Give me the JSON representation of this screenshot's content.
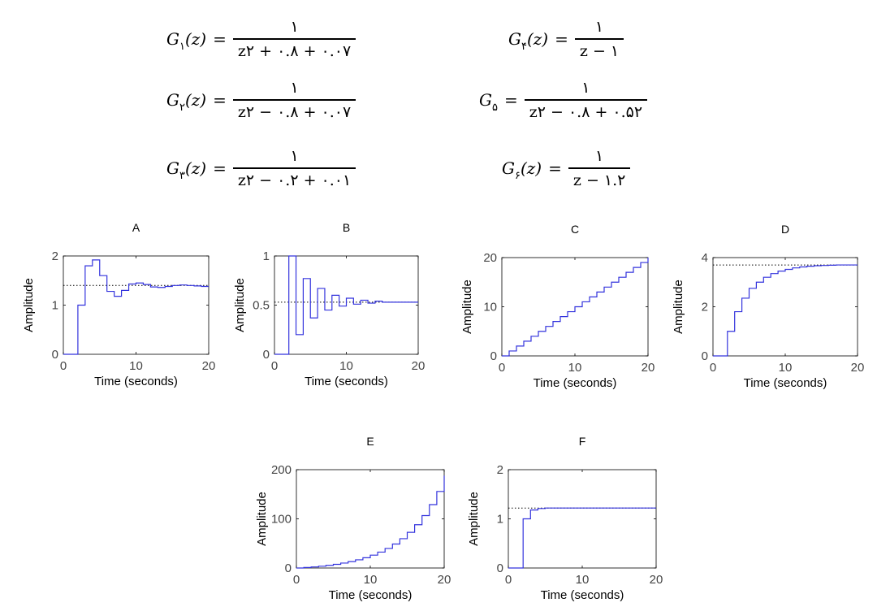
{
  "equations": [
    {
      "id": "g1",
      "lhs_main": "G",
      "lhs_sub": "۱",
      "lhs_arg": "(z)",
      "eq": "=",
      "num": "۱",
      "den": "z۲ + ۰.۸ + ۰.۰۷"
    },
    {
      "id": "g2",
      "lhs_main": "G",
      "lhs_sub": "۲",
      "lhs_arg": "(z)",
      "eq": "=",
      "num": "۱",
      "den": "z۲ − ۰.۸ + ۰.۰۷"
    },
    {
      "id": "g3",
      "lhs_main": "G",
      "lhs_sub": "۳",
      "lhs_arg": "(z)",
      "eq": "=",
      "num": "۱",
      "den": "z۲ − ۰.۲ + ۰.۰۱"
    },
    {
      "id": "g4",
      "lhs_main": "G",
      "lhs_sub": "۴",
      "lhs_arg": "(z)",
      "eq": "=",
      "num": "۱",
      "den": "z − ۱"
    },
    {
      "id": "g5",
      "lhs_main": "G",
      "lhs_sub": "۵",
      "lhs_arg": "",
      "eq": "=",
      "num": "۱",
      "den": "z۲ − ۰.۸ + ۰.۵۲"
    },
    {
      "id": "g6",
      "lhs_main": "G",
      "lhs_sub": "۶",
      "lhs_arg": "(z)",
      "eq": "=",
      "num": "۱",
      "den": "z − ۱.۲"
    }
  ],
  "colors": {
    "line": "#3333dd",
    "axis": "#000000",
    "tick_text": "#444444",
    "dotted": "#000000"
  },
  "chart_data": [
    {
      "type": "line",
      "title": "A",
      "xlabel": "Time (seconds)",
      "ylabel": "Amplitude",
      "xlim": [
        0,
        20
      ],
      "ylim": [
        0,
        2
      ],
      "xticks": [
        0,
        10,
        20
      ],
      "yticks": [
        0,
        1,
        2
      ],
      "steady_state": 1.4,
      "series": [
        {
          "x": [
            0,
            1,
            2,
            3,
            4,
            5,
            6,
            7,
            8,
            9,
            10,
            11,
            12,
            13,
            14,
            15,
            16,
            17,
            18,
            19,
            20
          ],
          "y": [
            0,
            0,
            1.0,
            1.8,
            1.92,
            1.6,
            1.28,
            1.18,
            1.3,
            1.43,
            1.45,
            1.42,
            1.37,
            1.36,
            1.38,
            1.4,
            1.41,
            1.4,
            1.39,
            1.38,
            1.38
          ]
        }
      ]
    },
    {
      "type": "line",
      "title": "B",
      "xlabel": "Time (seconds)",
      "ylabel": "Amplitude",
      "xlim": [
        0,
        20
      ],
      "ylim": [
        0,
        1
      ],
      "xticks": [
        0,
        10,
        20
      ],
      "yticks": [
        0,
        0.5,
        1
      ],
      "steady_state": 0.53,
      "series": [
        {
          "x": [
            0,
            1,
            2,
            3,
            4,
            5,
            6,
            7,
            8,
            9,
            10,
            11,
            12,
            13,
            14,
            15,
            16,
            17,
            18,
            19,
            20
          ],
          "y": [
            0,
            0,
            1.0,
            0.2,
            0.77,
            0.37,
            0.67,
            0.45,
            0.6,
            0.49,
            0.57,
            0.51,
            0.55,
            0.52,
            0.54,
            0.53,
            0.53,
            0.53,
            0.53,
            0.53,
            0.53
          ]
        }
      ]
    },
    {
      "type": "line",
      "title": "C",
      "xlabel": "Time (seconds)",
      "ylabel": "Amplitude",
      "xlim": [
        0,
        20
      ],
      "ylim": [
        0,
        20
      ],
      "xticks": [
        0,
        10,
        20
      ],
      "yticks": [
        0,
        10,
        20
      ],
      "series": [
        {
          "x": [
            0,
            1,
            2,
            3,
            4,
            5,
            6,
            7,
            8,
            9,
            10,
            11,
            12,
            13,
            14,
            15,
            16,
            17,
            18,
            19,
            20
          ],
          "y": [
            0,
            1,
            2,
            3,
            4,
            5,
            6,
            7,
            8,
            9,
            10,
            11,
            12,
            13,
            14,
            15,
            16,
            17,
            18,
            19,
            20
          ]
        }
      ]
    },
    {
      "type": "line",
      "title": "D",
      "xlabel": "Time (seconds)",
      "ylabel": "Amplitude",
      "xlim": [
        0,
        20
      ],
      "ylim": [
        0,
        4
      ],
      "xticks": [
        0,
        10,
        20
      ],
      "yticks": [
        0,
        2,
        4
      ],
      "steady_state": 3.7,
      "series": [
        {
          "x": [
            0,
            1,
            2,
            3,
            4,
            5,
            6,
            7,
            8,
            9,
            10,
            11,
            12,
            13,
            14,
            15,
            16,
            17,
            18,
            19,
            20
          ],
          "y": [
            0,
            0,
            1.0,
            1.8,
            2.35,
            2.75,
            3.0,
            3.2,
            3.35,
            3.45,
            3.52,
            3.58,
            3.62,
            3.65,
            3.67,
            3.68,
            3.69,
            3.7,
            3.7,
            3.7,
            3.7
          ]
        }
      ]
    },
    {
      "type": "line",
      "title": "E",
      "xlabel": "Time (seconds)",
      "ylabel": "Amplitude",
      "xlim": [
        0,
        20
      ],
      "ylim": [
        0,
        200
      ],
      "xticks": [
        0,
        10,
        20
      ],
      "yticks": [
        0,
        100,
        200
      ],
      "series": [
        {
          "x": [
            0,
            1,
            2,
            3,
            4,
            5,
            6,
            7,
            8,
            9,
            10,
            11,
            12,
            13,
            14,
            15,
            16,
            17,
            18,
            19,
            20
          ],
          "y": [
            0,
            1,
            2.2,
            3.6,
            5.4,
            7.5,
            10,
            13,
            16.6,
            20.9,
            26.1,
            32.3,
            39.8,
            48.8,
            59.6,
            72.5,
            88,
            106.6,
            128.9,
            155.7,
            187.8
          ]
        }
      ]
    },
    {
      "type": "line",
      "title": "F",
      "xlabel": "Time (seconds)",
      "ylabel": "Amplitude",
      "xlim": [
        0,
        20
      ],
      "ylim": [
        0,
        2
      ],
      "xticks": [
        0,
        10,
        20
      ],
      "yticks": [
        0,
        1,
        2
      ],
      "steady_state": 1.22,
      "series": [
        {
          "x": [
            0,
            1,
            2,
            3,
            4,
            5,
            6,
            7,
            8,
            9,
            10,
            11,
            12,
            13,
            14,
            15,
            16,
            17,
            18,
            19,
            20
          ],
          "y": [
            0,
            0,
            1.0,
            1.18,
            1.21,
            1.22,
            1.22,
            1.22,
            1.22,
            1.22,
            1.22,
            1.22,
            1.22,
            1.22,
            1.22,
            1.22,
            1.22,
            1.22,
            1.22,
            1.22,
            1.22
          ]
        }
      ]
    }
  ]
}
